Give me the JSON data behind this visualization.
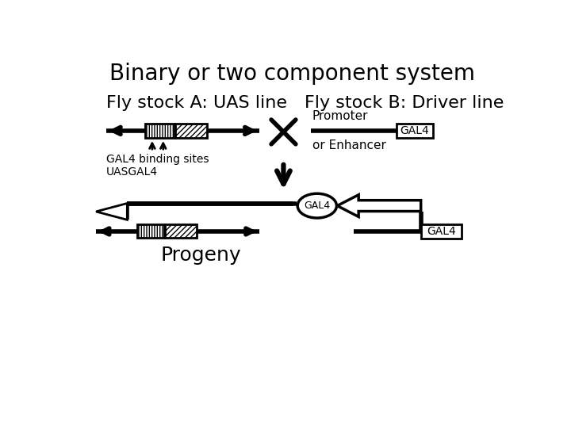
{
  "title": "Binary or two component system",
  "title_fontsize": 20,
  "label_A": "Fly stock A: UAS line",
  "label_B": "Fly stock B: Driver line",
  "label_fontsize": 16,
  "gal4_binding_text": "GAL4 binding sites\nUASGAL4",
  "promoter_text": "Promoter",
  "or_enhancer_text": "or Enhancer",
  "gal4_box_text": "GAL4",
  "progeny_text": "Progeny",
  "bg_color": "#ffffff",
  "line_color": "#000000",
  "progeny_fontsize": 18,
  "lw_thick": 4.0,
  "lw_main": 2.0
}
